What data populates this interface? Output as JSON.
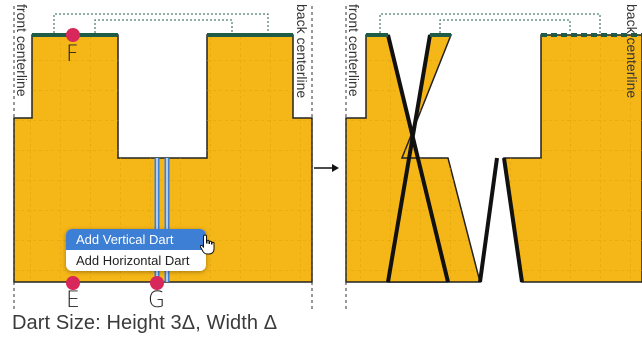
{
  "labels": {
    "front_centerline": "front centerline",
    "back_centerline": "back centerline",
    "point_f": "F",
    "point_e": "E",
    "point_g": "G"
  },
  "context_menu": {
    "items": [
      "Add Vertical Dart",
      "Add Horizontal Dart"
    ],
    "highlighted_index": 0
  },
  "caption": "Dart Size: Height 3Δ, Width Δ",
  "colors": {
    "panel_fill": "#F5B617",
    "seam_green": "#1F5C48",
    "point_marker": "#D8285B",
    "dart_blue": "#3D7FD4",
    "menu_highlight": "#3D7FD4",
    "grid_line": "#D9A20E"
  },
  "icons": [
    "arrow-right-icon",
    "hand-pointer-icon"
  ]
}
